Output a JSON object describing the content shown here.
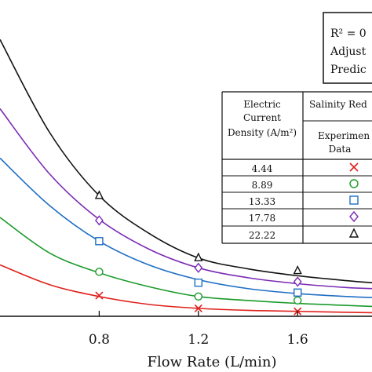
{
  "chart_data": {
    "type": "line",
    "xlabel": "Flow Rate (L/min)",
    "x_ticks": [
      "0.8",
      "1.2",
      "1.6"
    ],
    "xlim": [
      0.4,
      1.9
    ],
    "ylim": [
      0,
      16
    ],
    "x_marker": [
      0.8,
      1.2,
      1.6
    ],
    "series": [
      {
        "name": "4.44",
        "color": "#e0201b",
        "marker": "x",
        "curve_x": [
          0.4,
          0.6,
          0.8,
          1.0,
          1.2,
          1.4,
          1.6,
          1.8,
          1.9
        ],
        "curve_y": [
          2.6,
          1.6,
          1.0,
          0.6,
          0.4,
          0.3,
          0.25,
          0.2,
          0.18
        ],
        "points_y": [
          1.05,
          0.4,
          0.25
        ]
      },
      {
        "name": "8.89",
        "color": "#1a9a2a",
        "marker": "circle",
        "curve_x": [
          0.4,
          0.6,
          0.8,
          1.0,
          1.2,
          1.4,
          1.6,
          1.8,
          1.9
        ],
        "curve_y": [
          5.0,
          3.2,
          2.2,
          1.5,
          1.0,
          0.8,
          0.65,
          0.55,
          0.5
        ],
        "points_y": [
          2.25,
          1.0,
          0.8
        ]
      },
      {
        "name": "13.33",
        "color": "#1f6fc4",
        "marker": "square",
        "curve_x": [
          0.4,
          0.6,
          0.8,
          1.0,
          1.2,
          1.4,
          1.6,
          1.8,
          1.9
        ],
        "curve_y": [
          8.0,
          5.6,
          3.8,
          2.6,
          1.85,
          1.4,
          1.15,
          1.0,
          0.95
        ],
        "points_y": [
          3.8,
          1.7,
          1.2
        ]
      },
      {
        "name": "17.78",
        "color": "#7a2bb4",
        "marker": "diamond",
        "curve_x": [
          0.4,
          0.6,
          0.8,
          1.0,
          1.2,
          1.4,
          1.6,
          1.8,
          1.9
        ],
        "curve_y": [
          10.5,
          7.2,
          4.9,
          3.4,
          2.45,
          1.95,
          1.65,
          1.45,
          1.4
        ],
        "points_y": [
          4.85,
          2.45,
          1.75
        ]
      },
      {
        "name": "22.22",
        "color": "#111111",
        "marker": "triangle",
        "curve_x": [
          0.4,
          0.6,
          0.8,
          1.0,
          1.2,
          1.4,
          1.6,
          1.8,
          1.9
        ],
        "curve_y": [
          14.0,
          9.3,
          6.1,
          4.2,
          2.95,
          2.4,
          2.05,
          1.8,
          1.7
        ],
        "points_y": [
          6.1,
          2.95,
          2.3
        ]
      }
    ],
    "stats_box": [
      "R² = 0",
      "Adjust",
      "Predic"
    ],
    "legend_table": {
      "header_col1": [
        "Electric",
        "Current",
        "Density (A/m²)"
      ],
      "header_col2": "Salinity Red",
      "subheader_col2": [
        "Experimen",
        "Data"
      ],
      "rows": [
        "4.44",
        "8.89",
        "13.33",
        "17.78",
        "22.22"
      ]
    }
  }
}
